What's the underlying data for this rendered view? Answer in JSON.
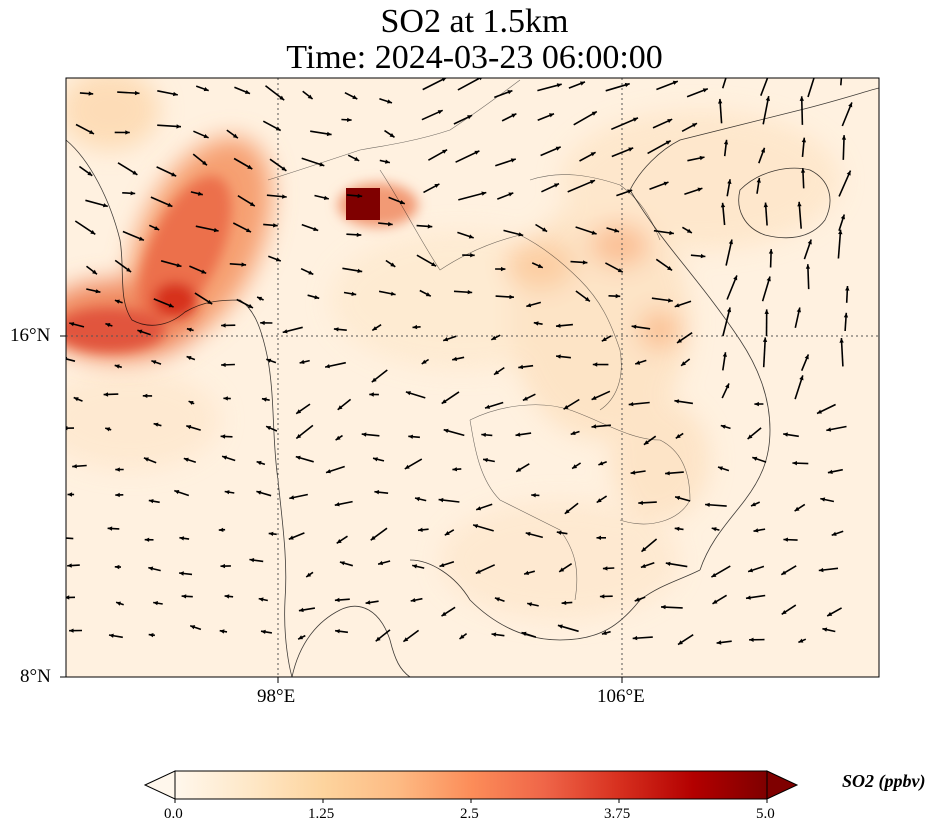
{
  "title": "SO2 at 1.5km",
  "subtitle": "Time: 2024-03-23 06:00:00",
  "axes": {
    "x_ticks": [
      "98°E",
      "106°E"
    ],
    "y_ticks": [
      "16°N",
      "8°N"
    ]
  },
  "colorbar": {
    "label": "SO2 (ppbv)",
    "ticks": [
      "0.0",
      "1.25",
      "2.5",
      "3.75",
      "5.0"
    ],
    "min": 0.0,
    "max": 5.0,
    "extend": "both",
    "colormap": [
      "#fff7ec",
      "#fee8c8",
      "#fdd49e",
      "#fdbb84",
      "#fc8d59",
      "#ef6548",
      "#d7301f",
      "#b30000",
      "#7f0000"
    ]
  },
  "colors": {
    "plume_high": "#7f0000",
    "plume_mid": "#d7301f",
    "background": "#fff7ec",
    "arrows": "#000000"
  }
}
